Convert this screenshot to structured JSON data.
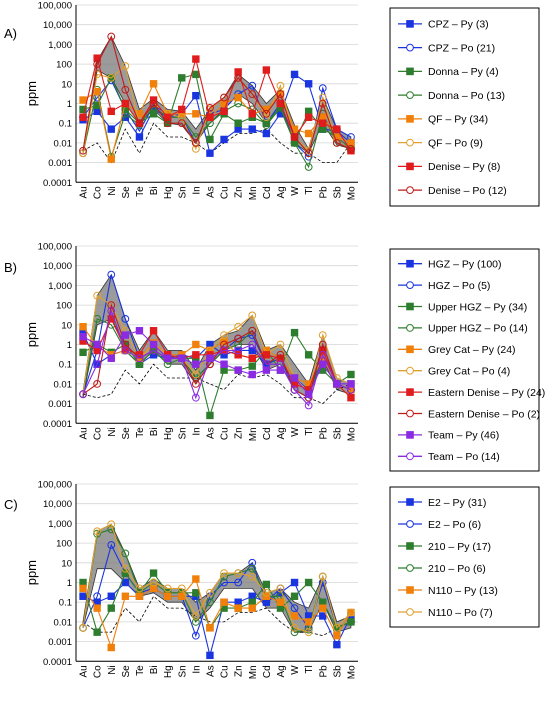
{
  "figure": {
    "tick_labels": [
      "100,000",
      "10,000",
      "1,000",
      "100",
      "10",
      "1",
      "0.1",
      "0.01",
      "0.001",
      "0.0001"
    ],
    "elements": [
      "Au",
      "Co",
      "Ni",
      "Se",
      "Te",
      "Bi",
      "Hg",
      "Sn",
      "In",
      "As",
      "Cu",
      "Zn",
      "Mn",
      "Cd",
      "Ag",
      "W",
      "Tl",
      "Pb",
      "Sb",
      "Mo"
    ]
  },
  "chart_data": [
    {
      "panel_label": "A)",
      "type": "line",
      "scale": "log",
      "ylabel": "ppm",
      "ylim": [
        0.0001,
        100000
      ],
      "x": [
        "Au",
        "Co",
        "Ni",
        "Se",
        "Te",
        "Bi",
        "Hg",
        "Sn",
        "In",
        "As",
        "Cu",
        "Zn",
        "Mn",
        "Cd",
        "Ag",
        "W",
        "Tl",
        "Pb",
        "Sb",
        "Mo"
      ],
      "ci_band": {
        "upper": [
          0.004,
          150,
          2500,
          80,
          0.5,
          1.8,
          0.5,
          0.4,
          0.05,
          0.5,
          2,
          30,
          8,
          1,
          5,
          0.08,
          0.005,
          2,
          0.05,
          0.02
        ],
        "lower": [
          0.003,
          50,
          20,
          1,
          0.1,
          0.5,
          0.1,
          0.08,
          0.01,
          0.1,
          0.5,
          3,
          1,
          0.1,
          0.5,
          0.01,
          0.003,
          0.1,
          0.008,
          0.005
        ]
      },
      "baseline": [
        0.004,
        0.01,
        0.001,
        0.05,
        0.003,
        0.1,
        0.02,
        0.02,
        0.01,
        0.003,
        0.01,
        0.03,
        0.03,
        0.05,
        0.01,
        0.003,
        0.003,
        0.001,
        0.001,
        0.01
      ],
      "series": [
        {
          "name": "CPZ – Py (3)",
          "color": "#1a35e0",
          "marker": "square",
          "filled": true,
          "values": [
            0.15,
            0.4,
            0.05,
            0.2,
            0.02,
            0.5,
            0.2,
            0.3,
            2.5,
            0.003,
            0.015,
            0.05,
            0.05,
            0.03,
            0.3,
            30,
            10,
            0.05,
            0.04,
            0.01
          ]
        },
        {
          "name": "CPZ – Po (21)",
          "color": "#1a35e0",
          "marker": "circle",
          "filled": false,
          "values": [
            0.2,
            2,
            15,
            0.5,
            0.04,
            0.8,
            0.3,
            0.2,
            0.01,
            0.3,
            0.5,
            3,
            8,
            0.1,
            1,
            0.01,
            0.002,
            6,
            0.05,
            0.02
          ]
        },
        {
          "name": "Donna – Py (4)",
          "color": "#2e7d2e",
          "marker": "square",
          "filled": true,
          "values": [
            0.5,
            0.8,
            20,
            0.5,
            0.1,
            0.3,
            0.1,
            20,
            30,
            0.015,
            0.3,
            0.1,
            0.2,
            0.1,
            0.7,
            0.01,
            0.4,
            0.05,
            0.02,
            0.005
          ]
        },
        {
          "name": "Donna – Po (13)",
          "color": "#2e7d2e",
          "marker": "circle",
          "filled": false,
          "values": [
            0.003,
            5,
            0.002,
            0.3,
            0.08,
            0.7,
            0.2,
            0.2,
            0.02,
            0.1,
            0.4,
            1,
            0.5,
            0.08,
            0.6,
            0.01,
            0.0006,
            0.3,
            0.01,
            0.005
          ]
        },
        {
          "name": "QF – Py (34)",
          "color": "#f0800a",
          "marker": "square",
          "filled": true,
          "values": [
            1.5,
            4,
            0.0015,
            1,
            0.3,
            10,
            0.3,
            0.3,
            0.3,
            0.2,
            1,
            2,
            0.3,
            0.5,
            3,
            0.05,
            0.03,
            0.2,
            0.02,
            0.01
          ]
        },
        {
          "name": "QF – Po (9)",
          "color": "#e0a030",
          "marker": "circle",
          "filled": false,
          "values": [
            0.003,
            30,
            20,
            80,
            0.1,
            1,
            0.3,
            0.2,
            0.005,
            0.5,
            2,
            20,
            3,
            0.2,
            8,
            0.02,
            0.004,
            2,
            0.01,
            0.005
          ]
        },
        {
          "name": "Denise – Py (8)",
          "color": "#e01c1c",
          "marker": "square",
          "filled": true,
          "values": [
            0.2,
            200,
            0.4,
            1,
            0.1,
            1.5,
            0.2,
            0.5,
            180,
            0.2,
            0.4,
            40,
            0.3,
            50,
            1,
            0.02,
            0.2,
            0.1,
            0.05,
            0.004
          ]
        },
        {
          "name": "Denise – Po (12)",
          "color": "#c01a1a",
          "marker": "circle",
          "filled": false,
          "values": [
            0.004,
            100,
            2500,
            5,
            0.1,
            1,
            0.1,
            0.1,
            0.01,
            0.6,
            2,
            20,
            3,
            0.3,
            3,
            0.02,
            0.003,
            1,
            0.01,
            0.005
          ]
        }
      ]
    },
    {
      "panel_label": "B)",
      "type": "line",
      "scale": "log",
      "ylabel": "ppm",
      "ylim": [
        0.0001,
        100000
      ],
      "x": [
        "Au",
        "Co",
        "Ni",
        "Se",
        "Te",
        "Bi",
        "Hg",
        "Sn",
        "In",
        "As",
        "Cu",
        "Zn",
        "Mn",
        "Cd",
        "Ag",
        "W",
        "Tl",
        "Pb",
        "Sb",
        "Mo"
      ],
      "ci_band": {
        "upper": [
          0.004,
          300,
          3500,
          20,
          0.5,
          5,
          0.5,
          0.5,
          0.05,
          1,
          3,
          5,
          30,
          0.5,
          1,
          0.1,
          0.01,
          3,
          0.02,
          0.01
        ],
        "lower": [
          0.002,
          10,
          20,
          1,
          0.1,
          0.5,
          0.1,
          0.1,
          0.01,
          0.1,
          0.5,
          1,
          1,
          0.05,
          0.1,
          0.005,
          0.002,
          0.2,
          0.005,
          0.003
        ]
      },
      "baseline": [
        0.003,
        0.002,
        0.003,
        0.05,
        0.01,
        0.1,
        0.02,
        0.02,
        0.02,
        0.01,
        0.005,
        0.03,
        0.02,
        0.03,
        0.01,
        0.002,
        0.002,
        0.001,
        0.005,
        0.01
      ],
      "series": [
        {
          "name": "HGZ – Py (100)",
          "color": "#1a35e0",
          "marker": "square",
          "filled": true,
          "values": [
            4,
            0.1,
            0.3,
            0.5,
            0.1,
            0.3,
            0.2,
            0.3,
            0.2,
            1,
            0.3,
            0.5,
            0.5,
            0.1,
            0.2,
            0.02,
            0.005,
            0.1,
            0.01,
            0.01
          ]
        },
        {
          "name": "HGZ – Po (5)",
          "color": "#1a35e0",
          "marker": "circle",
          "filled": false,
          "values": [
            0.003,
            0.5,
            3500,
            20,
            0.2,
            0.5,
            0.2,
            0.2,
            0.02,
            0.1,
            0.5,
            2,
            3,
            0.1,
            0.2,
            0.005,
            0.002,
            0.5,
            0.01,
            0.005
          ]
        },
        {
          "name": "Upper HGZ – Py (34)",
          "color": "#2e7d2e",
          "marker": "square",
          "filled": true,
          "values": [
            0.4,
            1,
            0.4,
            1,
            0.1,
            0.5,
            0.2,
            0.2,
            0.2,
            0.00025,
            0.05,
            0.05,
            0.08,
            0.5,
            0.05,
            4,
            0.3,
            0.05,
            0.01,
            0.03
          ]
        },
        {
          "name": "Upper HGZ – Po (14)",
          "color": "#2e7d2e",
          "marker": "circle",
          "filled": false,
          "values": [
            0.003,
            20,
            10,
            0.5,
            0.1,
            0.5,
            0.1,
            0.2,
            0.02,
            0.1,
            0.5,
            1,
            5,
            0.1,
            0.1,
            0.005,
            0.002,
            0.3,
            0.01,
            0.005
          ]
        },
        {
          "name": "Grey Cat – Py (24)",
          "color": "#f0800a",
          "marker": "square",
          "filled": true,
          "values": [
            8,
            0.8,
            0.3,
            0.5,
            0.2,
            1.2,
            0.3,
            0.3,
            1,
            0.5,
            1.5,
            0.3,
            0.2,
            0.5,
            0.2,
            0.02,
            0.01,
            0.2,
            0.01,
            0.005
          ]
        },
        {
          "name": "Grey Cat – Po (4)",
          "color": "#e0a030",
          "marker": "circle",
          "filled": false,
          "values": [
            0.003,
            300,
            100,
            5,
            0.2,
            1,
            0.3,
            0.2,
            0.03,
            0.5,
            3,
            8,
            30,
            0.3,
            1,
            0.02,
            0.004,
            3,
            0.02,
            0.01
          ]
        },
        {
          "name": "Eastern Denise – Py (24)",
          "color": "#e01c1c",
          "marker": "square",
          "filled": true,
          "values": [
            1.5,
            0.5,
            20,
            0.6,
            0.3,
            5,
            0.3,
            0.2,
            0.3,
            0.3,
            0.5,
            0.3,
            0.2,
            0.3,
            0.2,
            0.01,
            0.005,
            0.5,
            0.01,
            0.002
          ]
        },
        {
          "name": "Eastern Denise – Po (2)",
          "color": "#c01a1a",
          "marker": "circle",
          "filled": false,
          "values": [
            0.003,
            0.01,
            100,
            1,
            0.2,
            0.5,
            0.2,
            0.2,
            0.01,
            0.1,
            1,
            2,
            5,
            0.1,
            0.3,
            0.005,
            0.002,
            1,
            0.01,
            0.005
          ]
        },
        {
          "name": "Team – Py (46)",
          "color": "#8a2be2",
          "marker": "square",
          "filled": true,
          "values": [
            2.5,
            1,
            0.2,
            3,
            5,
            1,
            0.2,
            0.2,
            0.1,
            0.2,
            0.1,
            0.05,
            0.03,
            0.05,
            0.05,
            0.02,
            0.003,
            0.1,
            0.01,
            0.01
          ]
        },
        {
          "name": "Team – Po (14)",
          "color": "#8a2be2",
          "marker": "circle",
          "filled": false,
          "values": [
            0.003,
            0.1,
            50,
            0.5,
            0.2,
            0.5,
            0.2,
            0.2,
            0.002,
            0.2,
            0.5,
            0.5,
            1,
            0.1,
            0.1,
            0.005,
            0.0008,
            0.3,
            0.01,
            0.005
          ]
        }
      ]
    },
    {
      "panel_label": "C)",
      "type": "line",
      "scale": "log",
      "ylabel": "ppm",
      "ylim": [
        0.0001,
        100000
      ],
      "x": [
        "Au",
        "Co",
        "Ni",
        "Se",
        "Te",
        "Bi",
        "Hg",
        "Sn",
        "In",
        "As",
        "Cu",
        "Zn",
        "Mn",
        "Cd",
        "Ag",
        "W",
        "Tl",
        "Pb",
        "Sb",
        "Mo"
      ],
      "ci_band": {
        "upper": [
          0.01,
          400,
          900,
          30,
          0.5,
          1.5,
          0.5,
          0.5,
          0.1,
          0.3,
          3,
          3,
          10,
          0.3,
          0.5,
          0.1,
          0.05,
          2,
          0.01,
          0.02
        ],
        "lower": [
          0.005,
          5,
          5,
          1,
          0.2,
          0.3,
          0.1,
          0.1,
          0.01,
          0.05,
          0.5,
          0.5,
          0.5,
          0.05,
          0.05,
          0.003,
          0.003,
          0.1,
          0.003,
          0.005
        ]
      },
      "baseline": [
        0.01,
        0.003,
        0.003,
        0.05,
        0.01,
        0.2,
        0.05,
        0.05,
        0.02,
        0.01,
        0.01,
        0.03,
        0.03,
        0.05,
        0.01,
        0.003,
        0.003,
        0.002,
        0.005,
        0.01
      ],
      "series": [
        {
          "name": "E2 – Py (31)",
          "color": "#1a35e0",
          "marker": "square",
          "filled": true,
          "values": [
            0.2,
            0.1,
            0.2,
            1,
            0.2,
            0.5,
            0.2,
            0.2,
            0.2,
            0.0002,
            0.1,
            0.1,
            0.2,
            0.1,
            0.3,
            1,
            0.02,
            0.02,
            0.0007,
            0.02
          ]
        },
        {
          "name": "E2 – Po (6)",
          "color": "#1a35e0",
          "marker": "circle",
          "filled": false,
          "values": [
            0.005,
            0.2,
            80,
            3,
            0.3,
            0.5,
            0.2,
            0.2,
            0.002,
            0.2,
            1,
            1,
            10,
            0.1,
            0.5,
            0.05,
            0.005,
            1,
            0.005,
            0.01
          ]
        },
        {
          "name": "210 – Py (17)",
          "color": "#2e7d2e",
          "marker": "square",
          "filled": true,
          "values": [
            1,
            0.003,
            0.05,
            3,
            0.3,
            3,
            0.3,
            0.3,
            0.3,
            0.005,
            0.05,
            0.05,
            0.1,
            0.8,
            0.05,
            0.2,
            1,
            0.1,
            0.005,
            0.01
          ]
        },
        {
          "name": "210 – Po (6)",
          "color": "#2e7d2e",
          "marker": "circle",
          "filled": false,
          "values": [
            0.005,
            300,
            500,
            30,
            0.3,
            1,
            0.3,
            0.3,
            0.01,
            0.1,
            2,
            3,
            5,
            0.2,
            0.2,
            0.003,
            0.004,
            2,
            0.005,
            0.01
          ]
        },
        {
          "name": "N110 – Py (13)",
          "color": "#f0800a",
          "marker": "square",
          "filled": true,
          "values": [
            0.5,
            0.05,
            0.0005,
            0.2,
            0.2,
            0.5,
            0.2,
            0.2,
            1.5,
            0.005,
            0.1,
            0.05,
            0.05,
            0.2,
            0.1,
            0.02,
            0.01,
            0.05,
            0.002,
            0.03
          ]
        },
        {
          "name": "N110 – Po (7)",
          "color": "#e0a030",
          "marker": "circle",
          "filled": false,
          "values": [
            0.005,
            400,
            900,
            5,
            0.5,
            1,
            0.5,
            0.5,
            0.02,
            0.3,
            3,
            3,
            2,
            0.3,
            0.5,
            0.005,
            0.003,
            2,
            0.005,
            0.03
          ]
        }
      ]
    }
  ]
}
